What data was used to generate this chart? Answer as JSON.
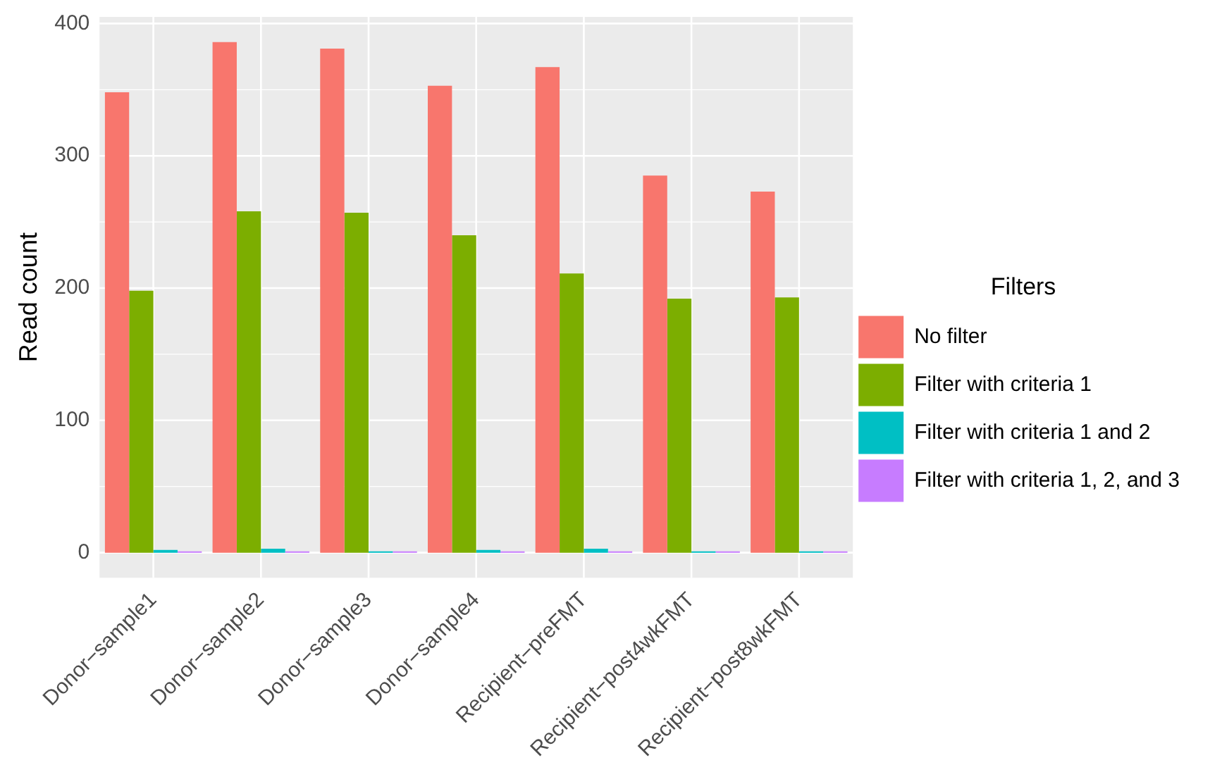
{
  "chart_data": {
    "type": "bar",
    "ylabel": "Read count",
    "legend_title": "Filters",
    "categories": [
      "Donor−sample1",
      "Donor−sample2",
      "Donor−sample3",
      "Donor−sample4",
      "Recipient−preFMT",
      "Recipient−post4wkFMT",
      "Recipient−post8wkFMT"
    ],
    "series": [
      {
        "name": "No filter",
        "color": "#f8766d",
        "values": [
          348,
          386,
          381,
          353,
          367,
          285,
          273
        ]
      },
      {
        "name": "Filter with criteria 1",
        "color": "#7cae00",
        "values": [
          198,
          258,
          257,
          240,
          211,
          192,
          193
        ]
      },
      {
        "name": "Filter with criteria 1 and 2",
        "color": "#00bfc4",
        "values": [
          2,
          3,
          1,
          2,
          3,
          1,
          1
        ]
      },
      {
        "name": "Filter with criteria 1, 2, and 3",
        "color": "#c77cff",
        "values": [
          1,
          1,
          1,
          1,
          1,
          1,
          1
        ]
      }
    ],
    "ylim": [
      -19,
      405
    ],
    "yticks": [
      0,
      100,
      200,
      300,
      400
    ],
    "grid": true,
    "legend": "right"
  }
}
